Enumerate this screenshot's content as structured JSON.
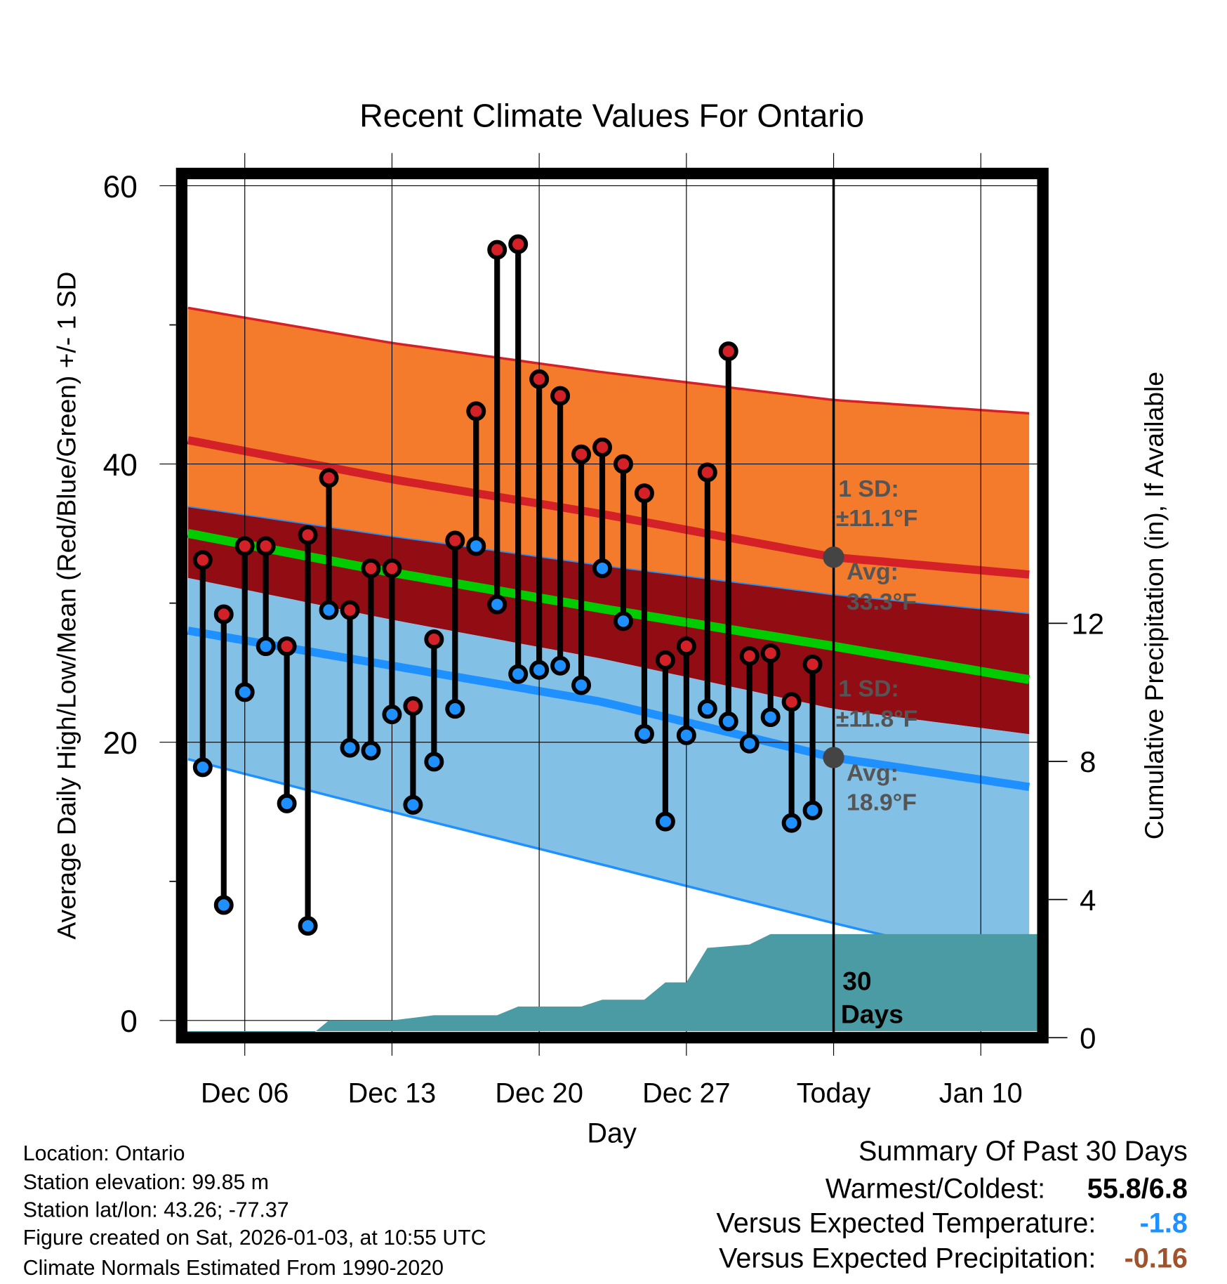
{
  "chart_data": {
    "type": "line",
    "title": "Recent Climate Values For Ontario",
    "xlabel": "Day",
    "ylabel": "Average Daily High/Low/Mean (Red/Blue/Green) +/- 1 SD",
    "y2label": "Cumulative Precipitation (in), If Available",
    "ylim": [
      -1.2,
      61
    ],
    "y2lim": [
      0,
      30
    ],
    "grid": true,
    "x_ticks": [
      {
        "day": 3,
        "label": "Dec 06"
      },
      {
        "day": 10,
        "label": "Dec 13"
      },
      {
        "day": 17,
        "label": "Dec 20"
      },
      {
        "day": 24,
        "label": "Dec 27"
      },
      {
        "day": 31,
        "label": "Today"
      },
      {
        "day": 38,
        "label": "Jan 10"
      }
    ],
    "y_ticks": [
      0,
      20,
      40,
      60
    ],
    "y_minor_ticks": [
      10,
      30,
      50
    ],
    "y2_ticks": [
      0,
      4,
      8,
      12
    ],
    "x_range_days": [
      0,
      40.7
    ],
    "day_note": "day 0 = Dec 03",
    "observed": {
      "dates": [
        "Dec 04",
        "Dec 05",
        "Dec 06",
        "Dec 07",
        "Dec 08",
        "Dec 09",
        "Dec 10",
        "Dec 11",
        "Dec 12",
        "Dec 13",
        "Dec 14",
        "Dec 15",
        "Dec 16",
        "Dec 17",
        "Dec 18",
        "Dec 19",
        "Dec 20",
        "Dec 21",
        "Dec 22",
        "Dec 23",
        "Dec 24",
        "Dec 25",
        "Dec 26",
        "Dec 27",
        "Dec 28",
        "Dec 29",
        "Dec 30",
        "Dec 31",
        "Jan 01",
        "Jan 02"
      ],
      "highs": [
        33.1,
        29.2,
        34.1,
        34.1,
        26.9,
        34.9,
        39.0,
        29.5,
        32.5,
        32.5,
        22.6,
        27.4,
        34.5,
        43.8,
        55.4,
        55.8,
        46.1,
        44.9,
        40.7,
        41.2,
        40.0,
        37.9,
        25.9,
        26.9,
        39.4,
        48.1,
        26.2,
        26.4,
        22.9,
        25.6
      ],
      "lows": [
        18.2,
        8.3,
        23.6,
        26.9,
        15.6,
        6.8,
        29.5,
        19.6,
        19.4,
        22.0,
        15.5,
        18.6,
        22.4,
        34.1,
        29.9,
        24.9,
        25.2,
        25.5,
        24.1,
        32.5,
        28.7,
        20.6,
        14.3,
        20.5,
        22.4,
        21.5,
        19.9,
        21.8,
        14.2,
        15.1
      ]
    },
    "normals": {
      "days": [
        0,
        10,
        20,
        31,
        40.7
      ],
      "high_plus_sd": [
        51.3,
        48.7,
        46.6,
        44.6,
        43.6
      ],
      "avg_high": [
        41.8,
        38.9,
        36.4,
        33.3,
        32.0
      ],
      "high_minus_sd": [
        37.0,
        34.8,
        32.7,
        30.6,
        29.2
      ],
      "avg_mean": [
        35.1,
        32.2,
        29.6,
        26.9,
        24.4
      ],
      "low_plus_sd": [
        31.9,
        28.8,
        26.0,
        22.4,
        20.5
      ],
      "avg_low": [
        28.1,
        25.5,
        22.9,
        18.9,
        16.7
      ],
      "low_minus_sd": [
        18.9,
        15.0,
        11.2,
        7.0,
        3.5
      ]
    },
    "precip": {
      "days": [
        0,
        6,
        7,
        10,
        12,
        15,
        16,
        19,
        20,
        22,
        23,
        24,
        25,
        27,
        28,
        40.7
      ],
      "cumulative": [
        0,
        0,
        0.5,
        0.5,
        0.65,
        0.65,
        0.9,
        0.9,
        1.1,
        1.1,
        1.6,
        1.6,
        2.6,
        2.7,
        3.0,
        3.0
      ]
    },
    "annotations": {
      "high_sd_label": "1 SD:",
      "high_sd_value": "±11.1°F",
      "high_avg_label": "Avg:",
      "high_avg_value": "33.3°F",
      "low_sd_label": "1 SD:",
      "low_sd_value": "±11.8°F",
      "low_avg_label": "Avg:",
      "low_avg_value": "18.9°F",
      "window_count": "30",
      "window_unit": "Days"
    },
    "colors": {
      "orange": "#f47a2c",
      "darkred": "#920c14",
      "lightblue": "#82c0e6",
      "red": "#d42127",
      "blue": "#1e90ff",
      "green": "#00cc00",
      "precip": "#4a9ba4",
      "hi_dot": "#d42127",
      "lo_dot": "#1e90ff"
    }
  },
  "info": {
    "location": "Location: Ontario",
    "elevation": "Station elevation: 99.85 m",
    "latlon": "Station lat/lon: 43.26; -77.37",
    "created": "Figure created on Sat, 2026-01-03, at 10:55 UTC",
    "normals": "Climate Normals Estimated From 1990-2020"
  },
  "summary": {
    "title": "Summary Of Past 30 Days",
    "warm_cold_label": "Warmest/Coldest:",
    "warm_cold_value": "55.8/6.8",
    "temp_label": "Versus Expected Temperature:",
    "temp_value": "-1.8",
    "precip_label": "Versus Expected Precipitation:",
    "precip_value": "-0.16",
    "temp_color": "#1e90ff",
    "precip_color": "#a0522d"
  }
}
